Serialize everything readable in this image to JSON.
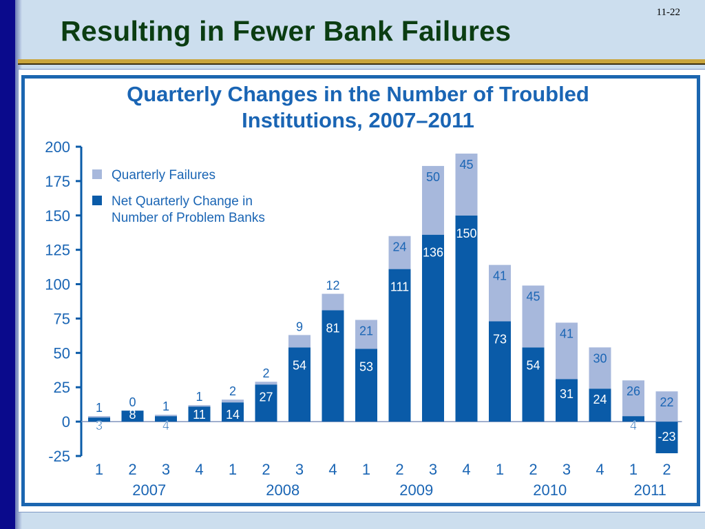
{
  "slide": {
    "title": "Resulting in Fewer Bank Failures",
    "page_number": "11-22"
  },
  "colors": {
    "failures": "#a7b8dc",
    "net_change": "#0a5ba8",
    "text_blue": "#1a65b4",
    "frame": "#1b66b0",
    "title_green": "#0b3d12"
  },
  "chart_data": {
    "type": "bar",
    "stacked": true,
    "title": "Quarterly Changes in the Number of Troubled Institutions, 2007–2011",
    "title_lines": [
      "Quarterly Changes in the Number of Troubled",
      "Institutions, 2007–2011"
    ],
    "categories": [
      "1",
      "2",
      "3",
      "4",
      "1",
      "2",
      "3",
      "4",
      "1",
      "2",
      "3",
      "4",
      "1",
      "2",
      "3",
      "4",
      "1",
      "2"
    ],
    "year_groups": [
      {
        "label": "2007",
        "start": 0,
        "end": 3
      },
      {
        "label": "2008",
        "start": 4,
        "end": 7
      },
      {
        "label": "2009",
        "start": 8,
        "end": 11
      },
      {
        "label": "2010",
        "start": 12,
        "end": 15
      },
      {
        "label": "2011",
        "start": 16,
        "end": 17
      }
    ],
    "series": [
      {
        "name": "Net Quarterly Change in Number of Problem Banks",
        "legend_lines": [
          "Net Quarterly Change in",
          "Number of Problem Banks"
        ],
        "values": [
          3,
          8,
          4,
          11,
          14,
          27,
          54,
          81,
          53,
          111,
          136,
          150,
          73,
          54,
          31,
          24,
          4,
          -23
        ]
      },
      {
        "name": "Quarterly Failures",
        "legend_lines": [
          "Quarterly Failures"
        ],
        "values": [
          1,
          0,
          1,
          1,
          2,
          2,
          9,
          12,
          21,
          24,
          50,
          45,
          41,
          45,
          41,
          30,
          26,
          22
        ]
      }
    ],
    "ylim": [
      -25,
      200
    ],
    "yticks": [
      -25,
      0,
      25,
      50,
      75,
      100,
      125,
      150,
      175,
      200
    ],
    "xlabel": "",
    "ylabel": "",
    "legend_position": "top-left",
    "grid": false
  }
}
